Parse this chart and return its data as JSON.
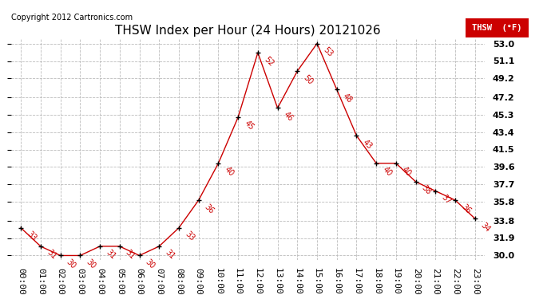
{
  "title": "THSW Index per Hour (24 Hours) 20121026",
  "copyright": "Copyright 2012 Cartronics.com",
  "legend_label": "THSW  (°F)",
  "x_labels": [
    "00:00",
    "01:00",
    "02:00",
    "03:00",
    "04:00",
    "05:00",
    "06:00",
    "07:00",
    "08:00",
    "09:00",
    "10:00",
    "11:00",
    "12:00",
    "13:00",
    "14:00",
    "15:00",
    "16:00",
    "17:00",
    "18:00",
    "19:00",
    "20:00",
    "21:00",
    "22:00",
    "23:00"
  ],
  "hours": [
    0,
    1,
    2,
    3,
    4,
    5,
    6,
    7,
    8,
    9,
    10,
    11,
    12,
    13,
    14,
    15,
    16,
    17,
    18,
    19,
    20,
    21,
    22,
    23
  ],
  "values": [
    33,
    31,
    30,
    30,
    31,
    31,
    30,
    31,
    33,
    36,
    40,
    45,
    52,
    46,
    50,
    53,
    48,
    43,
    40,
    40,
    38,
    37,
    36,
    34
  ],
  "y_ticks": [
    30.0,
    31.9,
    33.8,
    35.8,
    37.7,
    39.6,
    41.5,
    43.4,
    45.3,
    47.2,
    49.2,
    51.1,
    53.0
  ],
  "ylim": [
    29.5,
    53.5
  ],
  "line_color": "#cc0000",
  "marker_color": "#000000",
  "bg_color": "#ffffff",
  "grid_color": "#bbbbbb",
  "title_fontsize": 11,
  "copyright_fontsize": 7,
  "tick_fontsize": 8,
  "annotation_fontsize": 7
}
